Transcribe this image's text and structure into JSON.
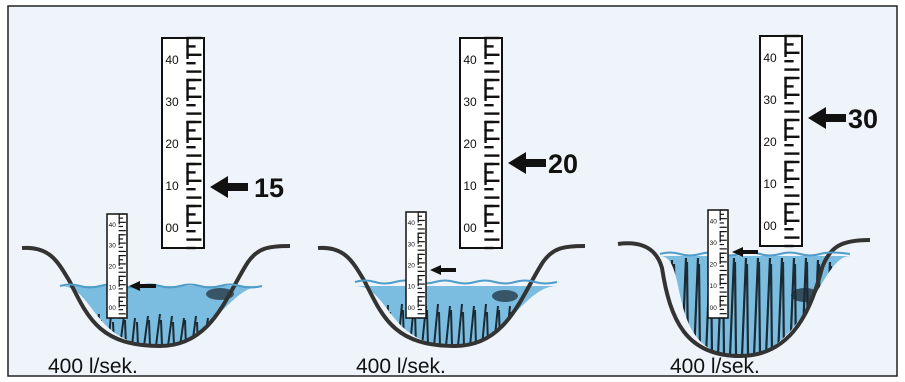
{
  "panels": [
    {
      "flow_label": "400 l/sek.",
      "reading": "15",
      "big_gauge_scale": [
        "40",
        "30",
        "20",
        "10",
        "00"
      ],
      "small_gauge_scale": [
        "40",
        "30",
        "20",
        "10",
        "00"
      ]
    },
    {
      "flow_label": "400 l/sek.",
      "reading": "20",
      "big_gauge_scale": [
        "40",
        "30",
        "20",
        "10",
        "00"
      ],
      "small_gauge_scale": [
        "40",
        "30",
        "20",
        "10",
        "00"
      ]
    },
    {
      "flow_label": "400 l/sek.",
      "reading": "30",
      "big_gauge_scale": [
        "40",
        "30",
        "20",
        "10",
        "00"
      ],
      "small_gauge_scale": [
        "40",
        "30",
        "20",
        "10",
        "00"
      ]
    }
  ],
  "colors": {
    "water": "#7bbde0",
    "water_dark": "#4f9cc9",
    "background": "#eef4f9",
    "vegetation": "#1b2a33",
    "gauge": "#111111"
  },
  "icons": [
    "arrow-left-icon",
    "water-gauge-icon",
    "weed-icon"
  ]
}
